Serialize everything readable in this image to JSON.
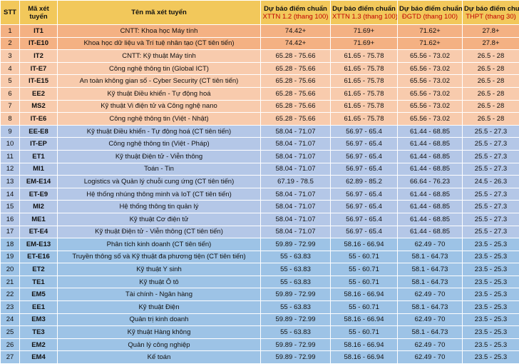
{
  "header": {
    "stt": "STT",
    "code": "Mã xét tuyển",
    "name": "Tên mã xét tuyển",
    "col_prefix": "Dự báo điểm chuẩn",
    "s1": "XTTN 1.2 (thang 100)",
    "s2": "XTTN 1.3 (thang 100)",
    "s3": "ĐGTD (thang 100)",
    "s4": "THPT (thang 30)"
  },
  "rows": [
    {
      "stt": "1",
      "code": "IT1",
      "name": "CNTT: Khoa học Máy tính",
      "s1": "74.42+",
      "s2": "71.69+",
      "s3": "71.62+",
      "s4": "27.8+",
      "group": "g1"
    },
    {
      "stt": "2",
      "code": "IT-E10",
      "name": "Khoa học dữ liệu và Trí tuệ nhân tạo (CT tiên tiến)",
      "s1": "74.42+",
      "s2": "71.69+",
      "s3": "71.62+",
      "s4": "27.8+",
      "group": "g1"
    },
    {
      "stt": "3",
      "code": "IT2",
      "name": "CNTT: Kỹ thuật Máy tính",
      "s1": "65.28 - 75.66",
      "s2": "61.65 - 75.78",
      "s3": "65.56 - 73.02",
      "s4": "26.5 - 28",
      "group": "g2"
    },
    {
      "stt": "4",
      "code": "IT-E7",
      "name": "Công nghệ thông tin (Global ICT)",
      "s1": "65.28 - 75.66",
      "s2": "61.65 - 75.78",
      "s3": "65.56 - 73.02",
      "s4": "26.5 - 28",
      "group": "g2"
    },
    {
      "stt": "5",
      "code": "IT-E15",
      "name": "An toàn không gian số - Cyber Security (CT tiên tiến)",
      "s1": "65.28 - 75.66",
      "s2": "61.65 - 75.78",
      "s3": "65.56 - 73.02",
      "s4": "26.5 - 28",
      "group": "g2"
    },
    {
      "stt": "6",
      "code": "EE2",
      "name": "Kỹ thuật Điều khiển - Tự động hoá",
      "s1": "65.28 - 75.66",
      "s2": "61.65 - 75.78",
      "s3": "65.56 - 73.02",
      "s4": "26.5 - 28",
      "group": "g2"
    },
    {
      "stt": "7",
      "code": "MS2",
      "name": "Kỹ thuật Vi điện tử và Công nghệ nano",
      "s1": "65.28 - 75.66",
      "s2": "61.65 - 75.78",
      "s3": "65.56 - 73.02",
      "s4": "26.5 - 28",
      "group": "g2"
    },
    {
      "stt": "8",
      "code": "IT-E6",
      "name": "Công nghệ thông tin (Việt - Nhật)",
      "s1": "65.28 - 75.66",
      "s2": "61.65 - 75.78",
      "s3": "65.56 - 73.02",
      "s4": "26.5 - 28",
      "group": "g2"
    },
    {
      "stt": "9",
      "code": "EE-E8",
      "name": "Kỹ thuật Điều khiển - Tự động hoá (CT tiên tiến)",
      "s1": "58.04 - 71.07",
      "s2": "56.97 - 65.4",
      "s3": "61.44 - 68.85",
      "s4": "25.5 - 27.3",
      "group": "g3"
    },
    {
      "stt": "10",
      "code": "IT-EP",
      "name": "Công nghệ thông tin (Việt - Pháp)",
      "s1": "58.04 - 71.07",
      "s2": "56.97 - 65.4",
      "s3": "61.44 - 68.85",
      "s4": "25.5 - 27.3",
      "group": "g3"
    },
    {
      "stt": "11",
      "code": "ET1",
      "name": "Kỹ thuật Điện tử - Viễn thông",
      "s1": "58.04 - 71.07",
      "s2": "56.97 - 65.4",
      "s3": "61.44 - 68.85",
      "s4": "25.5 - 27.3",
      "group": "g3"
    },
    {
      "stt": "12",
      "code": "MI1",
      "name": "Toán - Tin",
      "s1": "58.04 - 71.07",
      "s2": "56.97 - 65.4",
      "s3": "61.44 - 68.85",
      "s4": "25.5 - 27.3",
      "group": "g3"
    },
    {
      "stt": "13",
      "code": "EM-E14",
      "name": "Logistics và Quản lý chuỗi cung ứng (CT tiên tiến)",
      "s1": "67.19 - 78.5",
      "s2": "62.89 - 85.2",
      "s3": "66.64 - 76.23",
      "s4": "24.5 - 26.3",
      "group": "g3"
    },
    {
      "stt": "14",
      "code": "ET-E9",
      "name": "Hệ thống nhúng thông minh và IoT (CT tiên tiến)",
      "s1": "58.04 - 71.07",
      "s2": "56.97 - 65.4",
      "s3": "61.44 - 68.85",
      "s4": "25.5 - 27.3",
      "group": "g3"
    },
    {
      "stt": "15",
      "code": "MI2",
      "name": "Hệ thống thông tin quản lý",
      "s1": "58.04 - 71.07",
      "s2": "56.97 - 65.4",
      "s3": "61.44 - 68.85",
      "s4": "25.5 - 27.3",
      "group": "g3"
    },
    {
      "stt": "16",
      "code": "ME1",
      "name": "Kỹ thuật Cơ điện tử",
      "s1": "58.04 - 71.07",
      "s2": "56.97 - 65.4",
      "s3": "61.44 - 68.85",
      "s4": "25.5 - 27.3",
      "group": "g3"
    },
    {
      "stt": "17",
      "code": "ET-E4",
      "name": "Kỹ thuật Điện tử - Viễn thông (CT tiên tiến)",
      "s1": "58.04 - 71.07",
      "s2": "56.97 - 65.4",
      "s3": "61.44 - 68.85",
      "s4": "25.5 - 27.3",
      "group": "g3"
    },
    {
      "stt": "18",
      "code": "EM-E13",
      "name": "Phân tích kinh doanh (CT tiên tiến)",
      "s1": "59.89 - 72.99",
      "s2": "58.16 - 66.94",
      "s3": "62.49 - 70",
      "s4": "23.5 - 25.3",
      "group": "g4"
    },
    {
      "stt": "19",
      "code": "ET-E16",
      "name": "Truyền thông số và Kỹ thuật đa phương tiện (CT tiên tiến)",
      "s1": "55 - 63.83",
      "s2": "55 - 60.71",
      "s3": "58.1 - 64.73",
      "s4": "23.5 - 25.3",
      "group": "g4"
    },
    {
      "stt": "20",
      "code": "ET2",
      "name": "Kỹ thuật Y sinh",
      "s1": "55 - 63.83",
      "s2": "55 - 60.71",
      "s3": "58.1 - 64.73",
      "s4": "23.5 - 25.3",
      "group": "g4"
    },
    {
      "stt": "21",
      "code": "TE1",
      "name": "Kỹ thuật Ô tô",
      "s1": "55 - 63.83",
      "s2": "55 - 60.71",
      "s3": "58.1 - 64.73",
      "s4": "23.5 - 25.3",
      "group": "g4"
    },
    {
      "stt": "22",
      "code": "EM5",
      "name": "Tài chính - Ngân hàng",
      "s1": "59.89 - 72.99",
      "s2": "58.16 - 66.94",
      "s3": "62.49 - 70",
      "s4": "23.5 - 25.3",
      "group": "g4"
    },
    {
      "stt": "23",
      "code": "EE1",
      "name": "Kỹ thuật Điện",
      "s1": "55 - 63.83",
      "s2": "55 - 60.71",
      "s3": "58.1 - 64.73",
      "s4": "23.5 - 25.3",
      "group": "g4"
    },
    {
      "stt": "24",
      "code": "EM3",
      "name": "Quản trị kinh doanh",
      "s1": "59.89 - 72.99",
      "s2": "58.16 - 66.94",
      "s3": "62.49 - 70",
      "s4": "23.5 - 25.3",
      "group": "g4"
    },
    {
      "stt": "25",
      "code": "TE3",
      "name": "Kỹ thuật Hàng không",
      "s1": "55 - 63.83",
      "s2": "55 - 60.71",
      "s3": "58.1 - 64.73",
      "s4": "23.5 - 25.3",
      "group": "g4"
    },
    {
      "stt": "26",
      "code": "EM2",
      "name": "Quản lý công nghiệp",
      "s1": "59.89 - 72.99",
      "s2": "58.16 - 66.94",
      "s3": "62.49 - 70",
      "s4": "23.5 - 25.3",
      "group": "g4"
    },
    {
      "stt": "27",
      "code": "EM4",
      "name": "Kế toán",
      "s1": "59.89 - 72.99",
      "s2": "58.16 - 66.94",
      "s3": "62.49 - 70",
      "s4": "23.5 - 25.3",
      "group": "g4"
    }
  ]
}
